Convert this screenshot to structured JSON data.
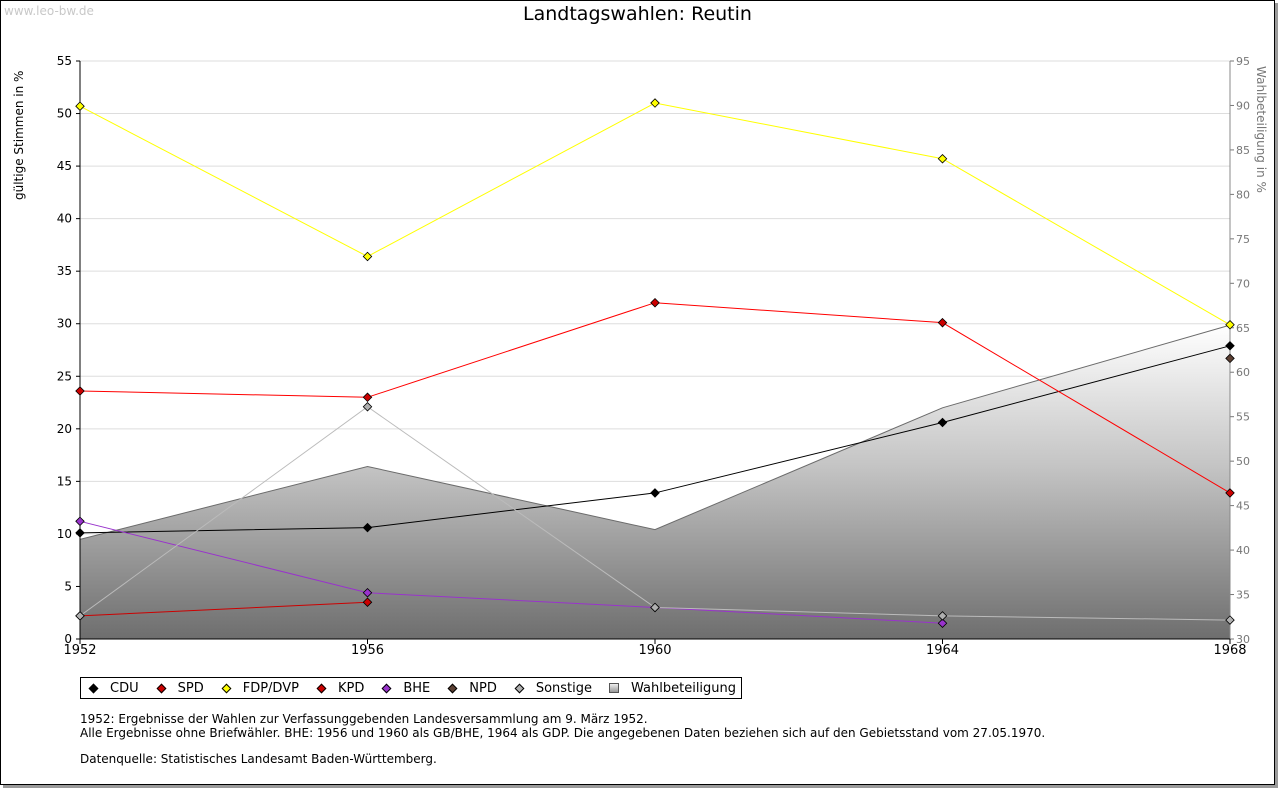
{
  "watermark": "www.leo-bw.de",
  "chart_data": {
    "type": "line",
    "title": "Landtagswahlen: Reutin",
    "ylabel": "gültige Stimmen in %",
    "ylabel_right": "Wahlbeteiligung in %",
    "x": [
      1952,
      1956,
      1960,
      1964,
      1968
    ],
    "xticks": [
      "1952",
      "1956",
      "1960",
      "1964",
      "1968"
    ],
    "ylim": [
      0,
      55
    ],
    "yticks": [
      0,
      5,
      10,
      15,
      20,
      25,
      30,
      35,
      40,
      45,
      50,
      55
    ],
    "ylim_right": [
      30,
      95
    ],
    "yticks_right": [
      30,
      35,
      40,
      45,
      50,
      55,
      60,
      65,
      70,
      75,
      80,
      85,
      90,
      95
    ],
    "grid": true,
    "area": {
      "name": "Wahlbeteiligung",
      "x": [
        1952,
        1956,
        1960,
        1964,
        1968
      ],
      "values": [
        41.2,
        49.4,
        42.3,
        56.0,
        65.3
      ],
      "color": "#888888"
    },
    "series": [
      {
        "name": "CDU",
        "color": "#000000",
        "marker": "#000000",
        "x": [
          1952,
          1956,
          1960,
          1964,
          1968
        ],
        "values": [
          10.1,
          10.6,
          13.9,
          20.6,
          27.9
        ]
      },
      {
        "name": "SPD",
        "color": "#ff0000",
        "marker": "#cc0000",
        "x": [
          1952,
          1956,
          1960,
          1964,
          1968
        ],
        "values": [
          23.6,
          23.0,
          32.0,
          30.1,
          13.9
        ]
      },
      {
        "name": "FDP/DVP",
        "color": "#ffff00",
        "marker": "#ffff00",
        "x": [
          1952,
          1956,
          1960,
          1964,
          1968
        ],
        "values": [
          50.7,
          36.4,
          51.0,
          45.7,
          29.9
        ]
      },
      {
        "name": "KPD",
        "color": "#cc0000",
        "marker": "#cc0000",
        "x": [
          1952,
          1956
        ],
        "values": [
          2.2,
          3.5
        ]
      },
      {
        "name": "BHE",
        "color": "#9933cc",
        "marker": "#9933cc",
        "x": [
          1952,
          1956,
          1960,
          1964
        ],
        "values": [
          11.2,
          4.4,
          3.0,
          1.5
        ]
      },
      {
        "name": "NPD",
        "color": "#5c4033",
        "marker": "#5c4033",
        "x": [
          1968
        ],
        "values": [
          26.7
        ]
      },
      {
        "name": "Sonstige",
        "color": "#bbbbbb",
        "marker": "#b0b0b0",
        "x": [
          1952,
          1956,
          1960,
          1964,
          1968
        ],
        "values": [
          2.2,
          22.1,
          3.0,
          2.2,
          1.8
        ]
      }
    ]
  },
  "legend": [
    {
      "label": "CDU",
      "color": "#000000",
      "shape": "dot"
    },
    {
      "label": "SPD",
      "color": "#cc0000",
      "shape": "dot"
    },
    {
      "label": "FDP/DVP",
      "color": "#ffff00",
      "shape": "dot"
    },
    {
      "label": "KPD",
      "color": "#cc0000",
      "shape": "dot"
    },
    {
      "label": "BHE",
      "color": "#9933cc",
      "shape": "dot"
    },
    {
      "label": "NPD",
      "color": "#5c4033",
      "shape": "dot"
    },
    {
      "label": "Sonstige",
      "color": "#b0b0b0",
      "shape": "dot"
    },
    {
      "label": "Wahlbeteiligung",
      "color": "#999999",
      "shape": "square"
    }
  ],
  "notes": {
    "line1": "1952: Ergebnisse der Wahlen zur Verfassunggebenden Landesversammlung am 9. März 1952.",
    "line2": "Alle Ergebnisse ohne Briefwähler. BHE: 1956 und 1960 als GB/BHE, 1964 als GDP. Die angegebenen Daten beziehen sich auf den Gebietsstand vom 27.05.1970.",
    "source": "Datenquelle: Statistisches Landesamt Baden-Württemberg."
  }
}
